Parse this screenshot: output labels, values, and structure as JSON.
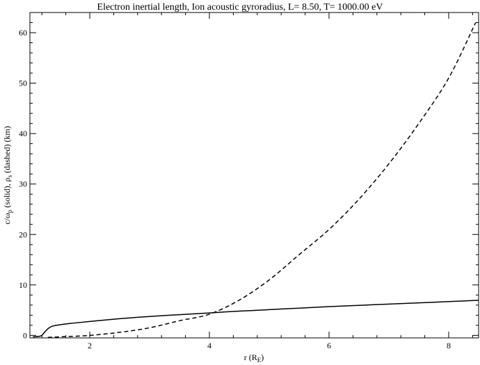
{
  "chart_data": {
    "type": "line",
    "title": "Electron inertial length, Ion acoustic gyroradius, L=   8.50, T= 1000.00 eV",
    "xlabel": {
      "main": "r (R",
      "sub": "E",
      "end": ")"
    },
    "ylabel": {
      "a": "c/ω",
      "a_sub": "p",
      "b": " (solid), ρ",
      "b_sub": "s",
      "c": " (dashed) (km)"
    },
    "xlim": [
      1.0,
      8.5
    ],
    "ylim": [
      -0.5,
      64
    ],
    "xticks": [
      2,
      4,
      6,
      8
    ],
    "xtick_labels": [
      "2",
      "4",
      "6",
      "8"
    ],
    "yticks": [
      0,
      10,
      20,
      30,
      40,
      50,
      60
    ],
    "ytick_labels": [
      "0",
      "10",
      "20",
      "30",
      "40",
      "50",
      "60"
    ],
    "grid": false,
    "series": [
      {
        "style": "solid",
        "x": [
          1.05,
          1.15,
          1.2,
          1.25,
          1.3,
          1.35,
          1.4,
          1.5,
          1.7,
          2.0,
          2.5,
          3.0,
          3.5,
          4.0,
          4.5,
          5.0,
          5.5,
          6.0,
          6.5,
          7.0,
          7.5,
          8.0,
          8.5
        ],
        "y": [
          -0.3,
          -0.2,
          0.0,
          0.7,
          1.3,
          1.7,
          1.9,
          2.1,
          2.4,
          2.75,
          3.3,
          3.75,
          4.1,
          4.45,
          4.8,
          5.1,
          5.4,
          5.7,
          5.95,
          6.2,
          6.45,
          6.7,
          6.95
        ]
      },
      {
        "style": "dashed",
        "x": [
          1.3,
          1.5,
          2.0,
          2.5,
          3.0,
          3.5,
          4.0,
          4.5,
          5.0,
          5.5,
          6.0,
          6.5,
          7.0,
          7.5,
          8.0,
          8.45
        ],
        "y": [
          -0.4,
          -0.3,
          0.0,
          0.6,
          1.5,
          2.9,
          4.2,
          7.0,
          11.0,
          16.0,
          21.0,
          27.0,
          34.0,
          42.0,
          51.0,
          62.0
        ]
      }
    ]
  }
}
